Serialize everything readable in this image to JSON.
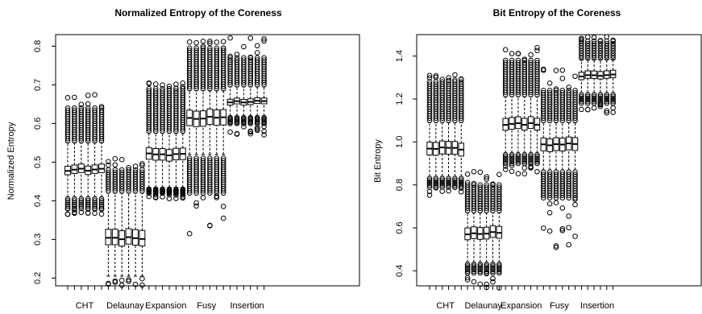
{
  "chart_data": [
    {
      "type": "boxplot",
      "title": "Normalized Entropy of the Coreness",
      "xlabel": "",
      "ylabel": "Normalized Entropy",
      "ylim": [
        0.18,
        0.83
      ],
      "yticks": [
        0.2,
        0.3,
        0.4,
        0.5,
        0.6,
        0.7,
        0.8
      ],
      "grid": false,
      "categories": [
        "CHT",
        "Delaunay",
        "Expansion",
        "Fusy",
        "Insertion"
      ],
      "boxes_per_category": 6,
      "groups": [
        {
          "name": "CHT",
          "min": 0.365,
          "q1": 0.47,
          "median": 0.48,
          "q3": 0.492,
          "max": 0.675,
          "dense_low": [
            0.38,
            0.405
          ],
          "dense_high": [
            0.555,
            0.64
          ],
          "whisker_low": 0.41,
          "whisker_high": 0.55
        },
        {
          "name": "Delaunay",
          "min": 0.18,
          "q1": 0.285,
          "median": 0.303,
          "q3": 0.325,
          "max": 0.52,
          "dense_low": null,
          "dense_high": [
            0.425,
            0.48
          ],
          "whisker_low": 0.205,
          "whisker_high": 0.42
        },
        {
          "name": "Expansion",
          "min": 0.405,
          "q1": 0.505,
          "median": 0.52,
          "q3": 0.535,
          "max": 0.705,
          "dense_low": [
            0.42,
            0.43
          ],
          "dense_high": [
            0.58,
            0.69
          ],
          "whisker_low": 0.435,
          "whisker_high": 0.575
        },
        {
          "name": "Fusy",
          "min": 0.3,
          "q1": 0.595,
          "median": 0.615,
          "q3": 0.635,
          "max": 0.815,
          "dense_low": [
            0.42,
            0.51
          ],
          "dense_high": [
            0.69,
            0.795
          ],
          "whisker_low": 0.52,
          "whisker_high": 0.685
        },
        {
          "name": "Insertion",
          "min": 0.57,
          "q1": 0.65,
          "median": 0.657,
          "q3": 0.665,
          "max": 0.825,
          "dense_low": [
            0.6,
            0.615
          ],
          "dense_high": [
            0.7,
            0.77
          ],
          "whisker_low": 0.62,
          "whisker_high": 0.695
        }
      ]
    },
    {
      "type": "boxplot",
      "title": "Bit Entropy of the Coreness",
      "xlabel": "",
      "ylabel": "Bit Entropy",
      "ylim": [
        0.33,
        1.5
      ],
      "yticks": [
        0.4,
        0.6,
        0.8,
        1.0,
        1.2,
        1.4
      ],
      "grid": false,
      "categories": [
        "CHT",
        "Delaunay",
        "Expansion",
        "Fusy",
        "Insertion"
      ],
      "boxes_per_category": 6,
      "groups": [
        {
          "name": "CHT",
          "min": 0.745,
          "q1": 0.94,
          "median": 0.97,
          "q3": 1.0,
          "max": 1.32,
          "dense_low": [
            0.79,
            0.83
          ],
          "dense_high": [
            1.1,
            1.28
          ],
          "whisker_low": 0.84,
          "whisker_high": 1.09
        },
        {
          "name": "Delaunay",
          "min": 0.32,
          "q1": 0.55,
          "median": 0.575,
          "q3": 0.605,
          "max": 0.87,
          "dense_low": [
            0.39,
            0.43
          ],
          "dense_high": [
            0.68,
            0.8
          ],
          "whisker_low": 0.44,
          "whisker_high": 0.67
        },
        {
          "name": "Expansion",
          "min": 0.85,
          "q1": 1.06,
          "median": 1.085,
          "q3": 1.115,
          "max": 1.44,
          "dense_low": [
            0.9,
            0.94
          ],
          "dense_high": [
            1.22,
            1.38
          ],
          "whisker_low": 0.95,
          "whisker_high": 1.21
        },
        {
          "name": "Fusy",
          "min": 0.48,
          "q1": 0.96,
          "median": 0.99,
          "q3": 1.02,
          "max": 1.34,
          "dense_low": [
            0.74,
            0.86
          ],
          "dense_high": [
            1.1,
            1.24
          ],
          "whisker_low": 0.87,
          "whisker_high": 1.09
        },
        {
          "name": "Insertion",
          "min": 1.13,
          "q1": 1.295,
          "median": 1.31,
          "q3": 1.33,
          "max": 1.49,
          "dense_low": [
            1.18,
            1.22
          ],
          "dense_high": [
            1.39,
            1.47
          ],
          "whisker_low": 1.23,
          "whisker_high": 1.385
        }
      ]
    }
  ]
}
